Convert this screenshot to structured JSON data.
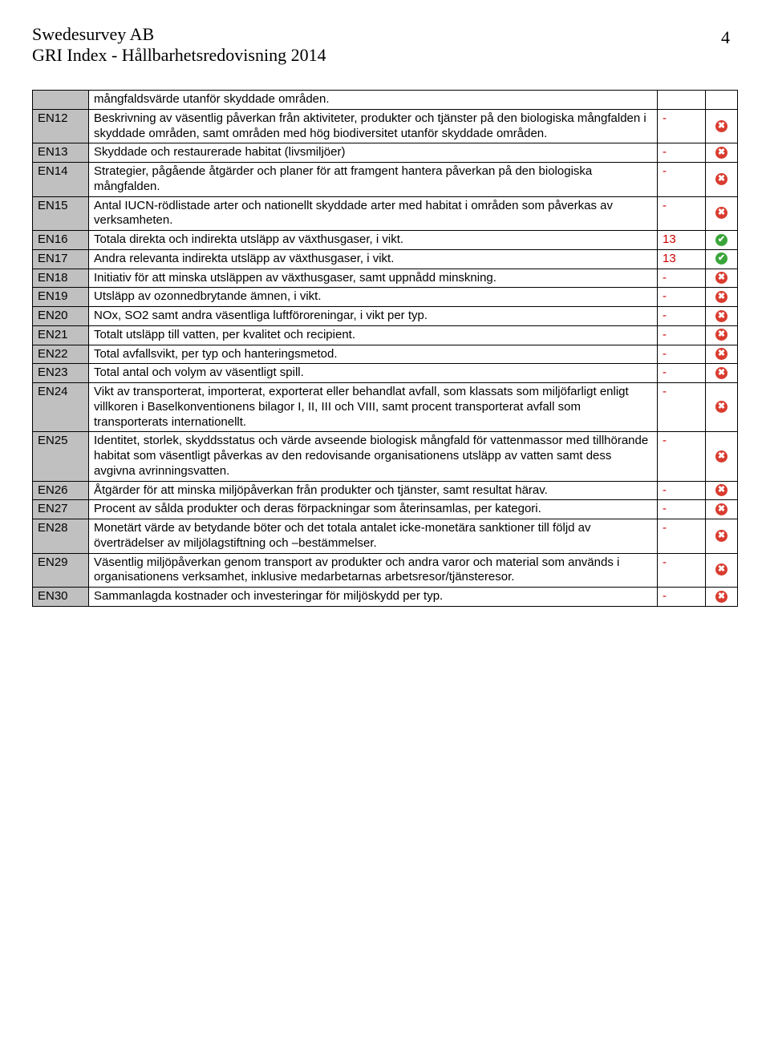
{
  "header": {
    "company": "Swedesurvey AB",
    "subtitle": "GRI Index - Hållbarhetsredovisning  2014",
    "page_number": "4"
  },
  "continuation": "mångfaldsvärde utanför skyddade områden.",
  "rows": [
    {
      "code": "EN12",
      "text": "Beskrivning av väsentlig påverkan från aktiviteter, produkter och tjänster på den biologiska mångfalden i skyddade områden, samt områden med hög biodiversitet utanför skyddade områden.",
      "ref": "-",
      "status": "x"
    },
    {
      "code": "EN13",
      "text": "Skyddade och restaurerade habitat (livsmiljöer)",
      "ref": "-",
      "status": "x"
    },
    {
      "code": "EN14",
      "text": "Strategier, pågående åtgärder och planer för att framgent hantera påverkan på den biologiska mångfalden.",
      "ref": "-",
      "status": "x"
    },
    {
      "code": "EN15",
      "text": "Antal IUCN-rödlistade arter och nationellt skyddade arter med habitat i områden som påverkas av verksamheten.",
      "ref": "-",
      "status": "x"
    },
    {
      "code": "EN16",
      "text": "Totala direkta och indirekta utsläpp av växthusgaser, i vikt.",
      "ref": "13",
      "status": "ok"
    },
    {
      "code": "EN17",
      "text": "Andra relevanta indirekta utsläpp av växthusgaser, i vikt.",
      "ref": "13",
      "status": "ok"
    },
    {
      "code": "EN18",
      "text": "Initiativ för att minska utsläppen av växthusgaser, samt uppnådd minskning.",
      "ref": "-",
      "status": "x"
    },
    {
      "code": "EN19",
      "text": "Utsläpp av ozonnedbrytande ämnen, i vikt.",
      "ref": "-",
      "status": "x"
    },
    {
      "code": "EN20",
      "text": "NOx, SO2 samt andra väsentliga luftföroreningar, i vikt per typ.",
      "ref": "-",
      "status": "x"
    },
    {
      "code": "EN21",
      "text": "Totalt utsläpp till vatten, per kvalitet och recipient.",
      "ref": "-",
      "status": "x"
    },
    {
      "code": "EN22",
      "text": "Total avfallsvikt, per typ och hanteringsmetod.",
      "ref": "-",
      "status": "x"
    },
    {
      "code": "EN23",
      "text": "Total antal och volym av väsentligt spill.",
      "ref": "-",
      "status": "x"
    },
    {
      "code": "EN24",
      "text": "Vikt av transporterat, importerat, exporterat eller behandlat avfall, som klassats som miljöfarligt enligt villkoren i Baselkonventionens bilagor I, II, III och VIII, samt procent transporterat avfall som transporterats internationellt.",
      "ref": "-",
      "status": "x"
    },
    {
      "code": "EN25",
      "text": "Identitet, storlek, skyddsstatus och värde avseende biologisk mångfald för vattenmassor med tillhörande habitat som väsentligt påverkas av den redovisande organisationens utsläpp av vatten samt dess avgivna avrinningsvatten.",
      "ref": "-",
      "status": "x"
    },
    {
      "code": "EN26",
      "text": "Åtgärder för att minska miljöpåverkan från produkter och tjänster, samt resultat härav.",
      "ref": "-",
      "status": "x"
    },
    {
      "code": "EN27",
      "text": "Procent av sålda produkter och deras förpackningar som återinsamlas, per kategori.",
      "ref": "-",
      "status": "x"
    },
    {
      "code": "EN28",
      "text": "Monetärt värde av betydande böter och det totala antalet icke-monetära sanktioner till följd av överträdelser av miljölagstiftning och –bestämmelser.",
      "ref": "-",
      "status": "x"
    },
    {
      "code": "EN29",
      "text": "Väsentlig miljöpåverkan genom transport av produkter och andra varor och material som används i organisationens verksamhet, inklusive medarbetarnas arbetsresor/tjänsteresor.",
      "ref": "-",
      "status": "x"
    },
    {
      "code": "EN30",
      "text": "Sammanlagda kostnader och investeringar för miljöskydd per typ.",
      "ref": "-",
      "status": "x"
    }
  ],
  "icons": {
    "x_glyph": "✖",
    "ok_glyph": "✔"
  },
  "colors": {
    "code_bg": "#c0c0c0",
    "ref_color": "#cc0000",
    "red_icon": "#d93c2f",
    "green_icon": "#3aa53a"
  }
}
